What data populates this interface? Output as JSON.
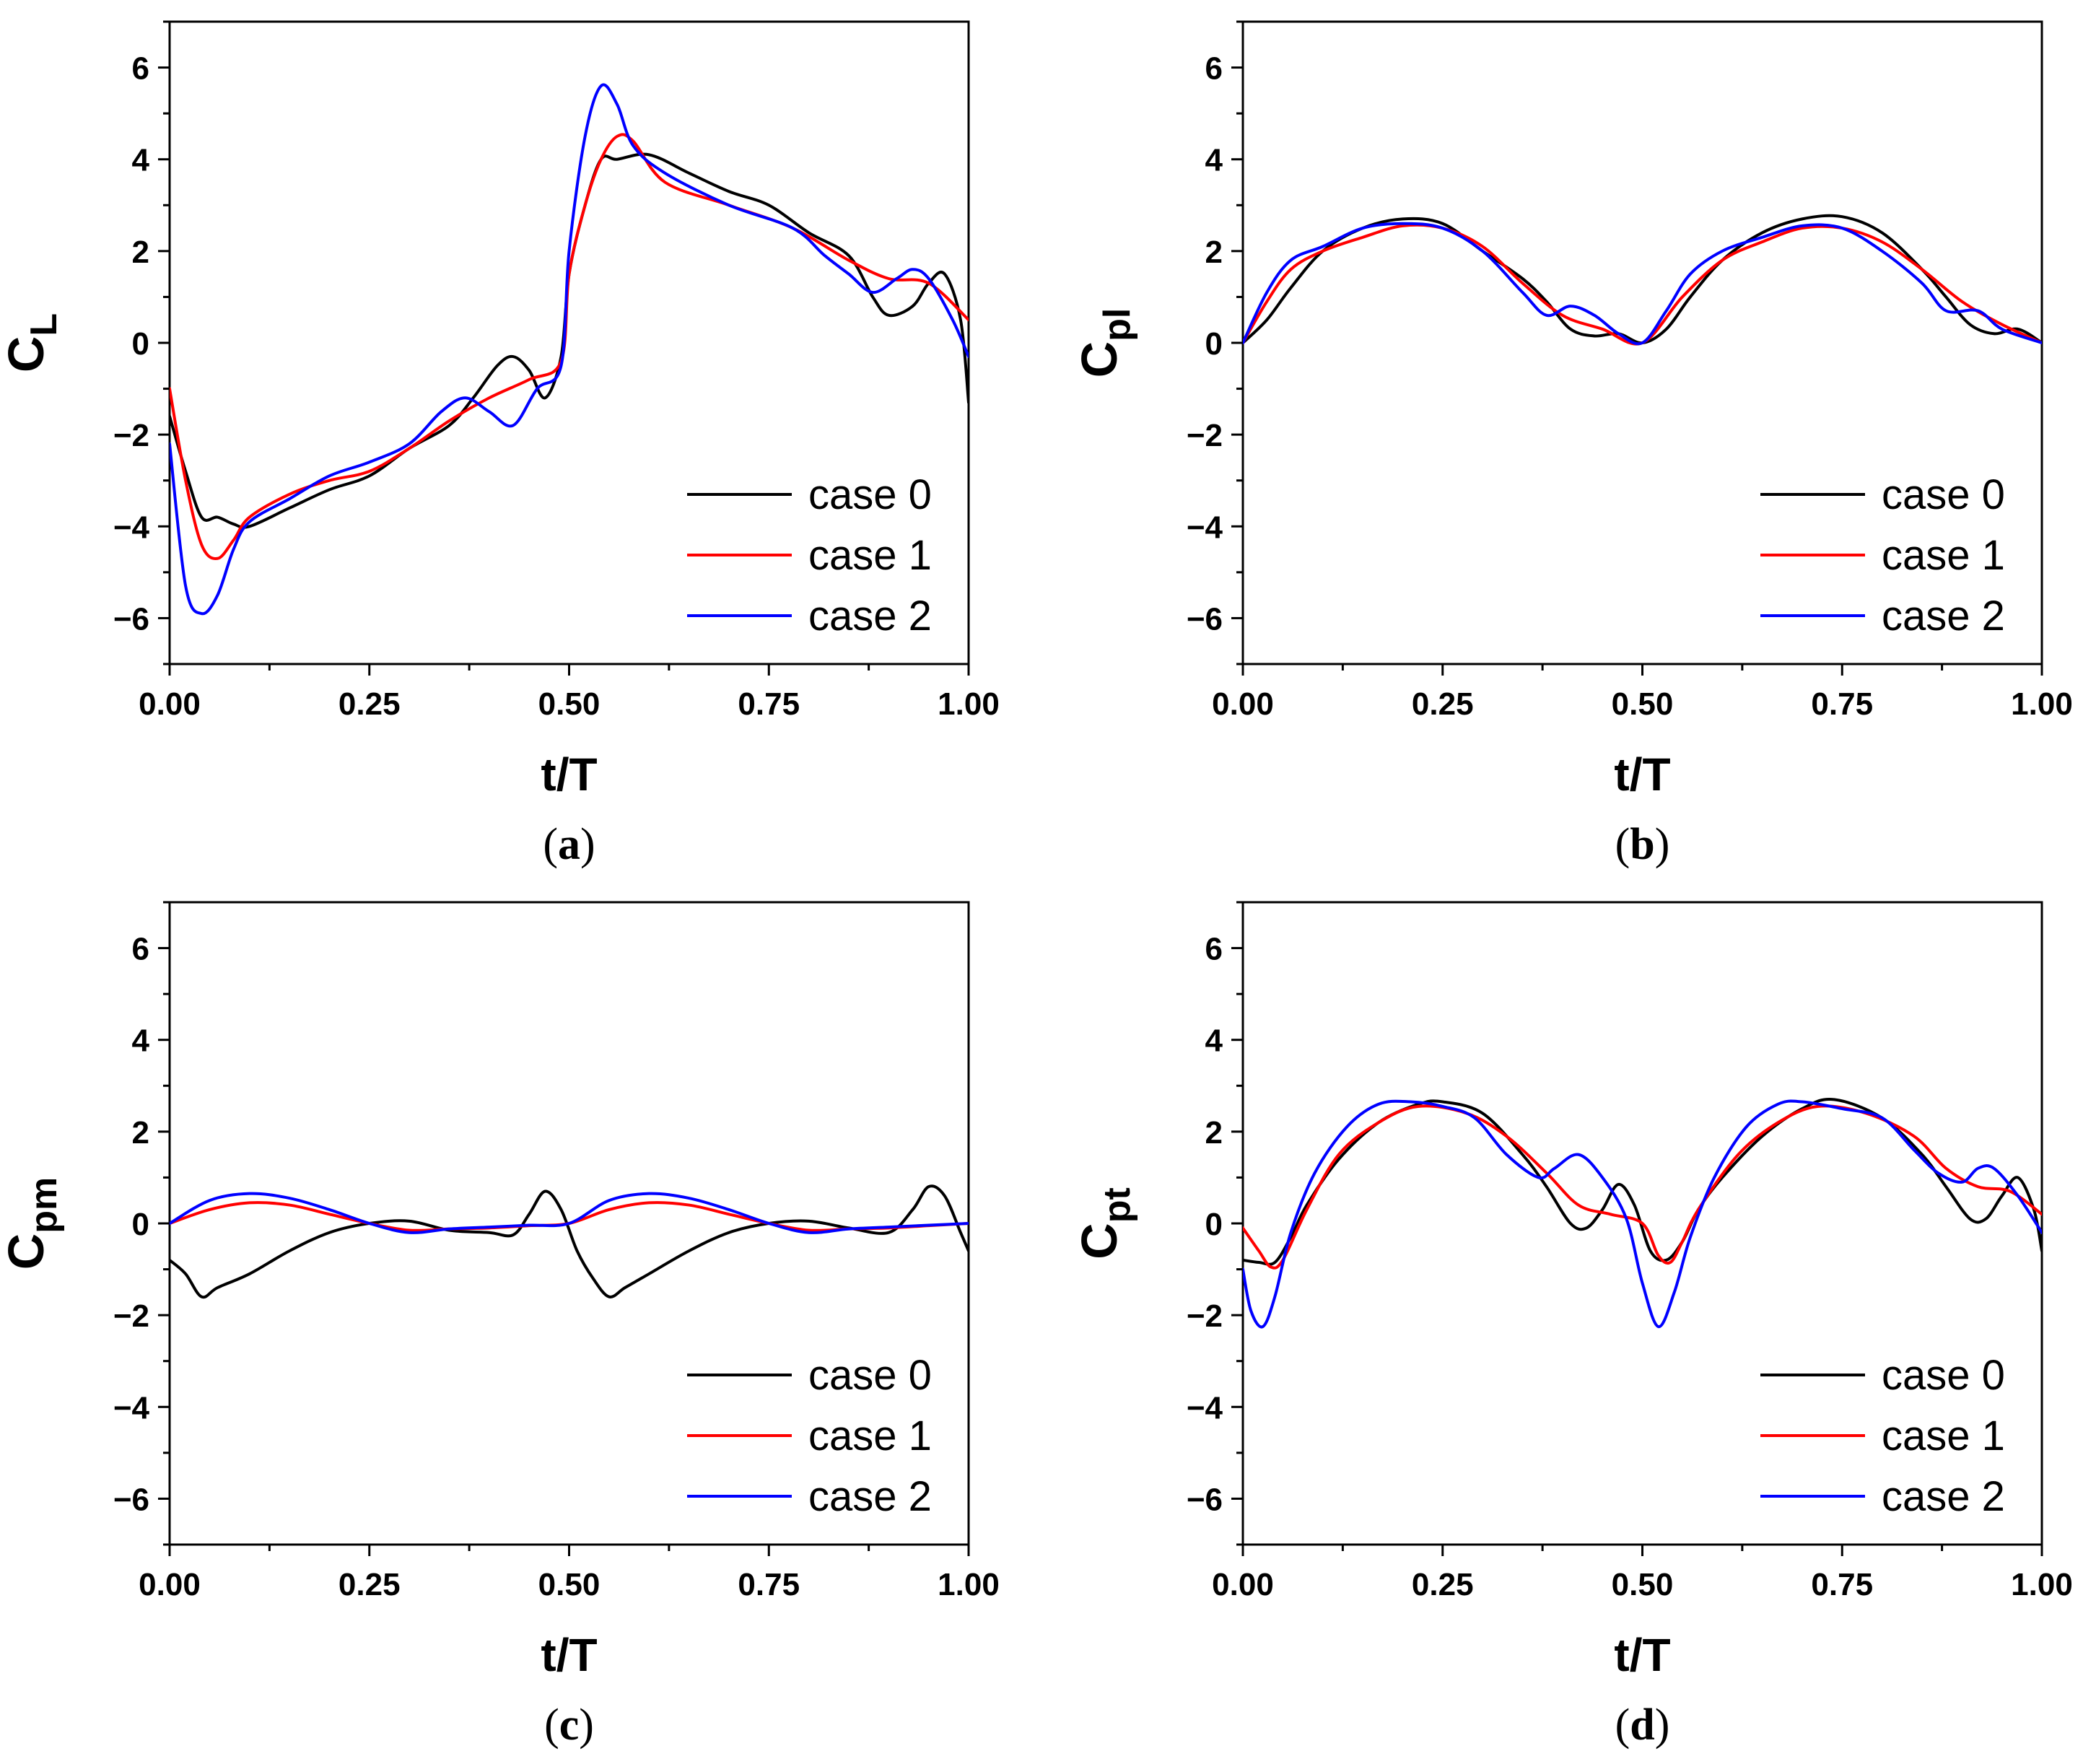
{
  "chart_data": [
    {
      "type": "line",
      "panel": "a",
      "caption": "(a)",
      "ylabel_main": "C",
      "ylabel_sub": "L",
      "xlabel": "t/T",
      "xlim": [
        0,
        1
      ],
      "ylim": [
        -7,
        7
      ],
      "xticks": [
        "0.00",
        "0.25",
        "0.50",
        "0.75",
        "1.00"
      ],
      "yticks": [
        "6",
        "4",
        "2",
        "0",
        "−2",
        "−4",
        "−6"
      ],
      "legend_position": "bottom-right",
      "series": [
        {
          "name": "case 0",
          "color": "#000000",
          "x": [
            0,
            0.02,
            0.04,
            0.06,
            0.08,
            0.1,
            0.15,
            0.2,
            0.25,
            0.3,
            0.35,
            0.38,
            0.41,
            0.43,
            0.45,
            0.47,
            0.49,
            0.5,
            0.52,
            0.54,
            0.56,
            0.6,
            0.65,
            0.7,
            0.75,
            0.8,
            0.85,
            0.88,
            0.9,
            0.93,
            0.95,
            0.97,
            0.99,
            1.0
          ],
          "y": [
            -1.6,
            -2.8,
            -3.8,
            -3.8,
            -3.95,
            -4.0,
            -3.6,
            -3.2,
            -2.9,
            -2.3,
            -1.8,
            -1.2,
            -0.5,
            -0.3,
            -0.6,
            -1.2,
            -0.3,
            1.5,
            3.0,
            4.0,
            4.0,
            4.1,
            3.7,
            3.3,
            3.0,
            2.4,
            1.9,
            1.0,
            0.6,
            0.8,
            1.3,
            1.5,
            0.5,
            -1.3
          ]
        },
        {
          "name": "case 1",
          "color": "#ff0000",
          "x": [
            0,
            0.02,
            0.04,
            0.06,
            0.08,
            0.1,
            0.15,
            0.2,
            0.25,
            0.3,
            0.35,
            0.4,
            0.45,
            0.49,
            0.5,
            0.52,
            0.54,
            0.56,
            0.58,
            0.62,
            0.7,
            0.78,
            0.85,
            0.9,
            0.95,
            1.0
          ],
          "y": [
            -1.0,
            -3.0,
            -4.4,
            -4.7,
            -4.3,
            -3.8,
            -3.3,
            -3.0,
            -2.8,
            -2.3,
            -1.7,
            -1.2,
            -0.8,
            -0.4,
            1.5,
            3.0,
            4.0,
            4.5,
            4.4,
            3.5,
            3.0,
            2.5,
            1.8,
            1.4,
            1.3,
            0.5
          ]
        },
        {
          "name": "case 2",
          "color": "#0000ff",
          "x": [
            0,
            0.02,
            0.04,
            0.06,
            0.08,
            0.1,
            0.15,
            0.2,
            0.25,
            0.3,
            0.34,
            0.37,
            0.4,
            0.43,
            0.46,
            0.49,
            0.5,
            0.52,
            0.54,
            0.56,
            0.58,
            0.62,
            0.7,
            0.78,
            0.82,
            0.85,
            0.88,
            0.91,
            0.93,
            0.95,
            0.98,
            1.0
          ],
          "y": [
            -2.2,
            -5.3,
            -5.9,
            -5.5,
            -4.5,
            -3.9,
            -3.4,
            -2.9,
            -2.6,
            -2.2,
            -1.5,
            -1.2,
            -1.5,
            -1.8,
            -1.0,
            -0.5,
            2.0,
            4.5,
            5.6,
            5.2,
            4.3,
            3.7,
            3.0,
            2.5,
            1.9,
            1.5,
            1.1,
            1.4,
            1.6,
            1.4,
            0.5,
            -0.3
          ]
        }
      ]
    },
    {
      "type": "line",
      "panel": "b",
      "caption": "(b)",
      "ylabel_main": "C",
      "ylabel_sub": "pl",
      "xlabel": "t/T",
      "xlim": [
        0,
        1
      ],
      "ylim": [
        -7,
        7
      ],
      "xticks": [
        "0.00",
        "0.25",
        "0.50",
        "0.75",
        "1.00"
      ],
      "yticks": [
        "6",
        "4",
        "2",
        "0",
        "−2",
        "−4",
        "−6"
      ],
      "legend_position": "bottom-right",
      "series": [
        {
          "name": "case 0",
          "color": "#000000",
          "x": [
            0,
            0.03,
            0.06,
            0.1,
            0.15,
            0.2,
            0.25,
            0.3,
            0.35,
            0.38,
            0.41,
            0.44,
            0.47,
            0.5,
            0.53,
            0.56,
            0.6,
            0.65,
            0.7,
            0.75,
            0.8,
            0.85,
            0.88,
            0.91,
            0.94,
            0.97,
            1.0
          ],
          "y": [
            0,
            0.5,
            1.2,
            2.0,
            2.5,
            2.7,
            2.6,
            2.0,
            1.4,
            0.9,
            0.3,
            0.15,
            0.2,
            0,
            0.3,
            1.0,
            1.8,
            2.4,
            2.7,
            2.75,
            2.4,
            1.6,
            1.0,
            0.4,
            0.2,
            0.3,
            0
          ]
        },
        {
          "name": "case 1",
          "color": "#ff0000",
          "x": [
            0,
            0.03,
            0.06,
            0.1,
            0.15,
            0.2,
            0.25,
            0.3,
            0.35,
            0.4,
            0.45,
            0.5,
            0.55,
            0.6,
            0.65,
            0.7,
            0.75,
            0.8,
            0.85,
            0.9,
            0.95,
            1.0
          ],
          "y": [
            0,
            0.9,
            1.6,
            2.0,
            2.3,
            2.55,
            2.5,
            2.1,
            1.3,
            0.6,
            0.3,
            0,
            1.0,
            1.8,
            2.2,
            2.5,
            2.5,
            2.2,
            1.6,
            0.9,
            0.4,
            0
          ]
        },
        {
          "name": "case 2",
          "color": "#0000ff",
          "x": [
            0,
            0.03,
            0.06,
            0.1,
            0.15,
            0.2,
            0.25,
            0.3,
            0.35,
            0.38,
            0.41,
            0.44,
            0.47,
            0.5,
            0.53,
            0.56,
            0.6,
            0.65,
            0.7,
            0.75,
            0.8,
            0.85,
            0.88,
            0.92,
            0.95,
            1.0
          ],
          "y": [
            0,
            1.1,
            1.8,
            2.1,
            2.5,
            2.6,
            2.5,
            2.0,
            1.1,
            0.6,
            0.8,
            0.6,
            0.2,
            0,
            0.7,
            1.5,
            2.0,
            2.3,
            2.55,
            2.5,
            2.0,
            1.3,
            0.7,
            0.7,
            0.3,
            0
          ]
        }
      ]
    },
    {
      "type": "line",
      "panel": "c",
      "caption": "(c)",
      "ylabel_main": "C",
      "ylabel_sub": "pm",
      "xlabel": "t/T",
      "xlim": [
        0,
        1
      ],
      "ylim": [
        -7,
        7
      ],
      "xticks": [
        "0.00",
        "0.25",
        "0.50",
        "0.75",
        "1.00"
      ],
      "yticks": [
        "6",
        "4",
        "2",
        "0",
        "−2",
        "−4",
        "−6"
      ],
      "legend_position": "bottom-right",
      "series": [
        {
          "name": "case 0",
          "color": "#000000",
          "x": [
            0,
            0.02,
            0.04,
            0.06,
            0.1,
            0.15,
            0.2,
            0.25,
            0.3,
            0.35,
            0.4,
            0.43,
            0.45,
            0.47,
            0.49,
            0.51,
            0.53,
            0.55,
            0.57,
            0.6,
            0.65,
            0.7,
            0.75,
            0.8,
            0.85,
            0.9,
            0.93,
            0.95,
            0.97,
            0.99,
            1.0
          ],
          "y": [
            -0.8,
            -1.1,
            -1.6,
            -1.4,
            -1.1,
            -0.6,
            -0.2,
            0,
            0.05,
            -0.15,
            -0.2,
            -0.25,
            0.2,
            0.7,
            0.3,
            -0.6,
            -1.2,
            -1.6,
            -1.4,
            -1.1,
            -0.6,
            -0.2,
            0,
            0.05,
            -0.1,
            -0.2,
            0.3,
            0.8,
            0.6,
            -0.2,
            -0.6
          ]
        },
        {
          "name": "case 1",
          "color": "#ff0000",
          "x": [
            0,
            0.05,
            0.1,
            0.15,
            0.2,
            0.25,
            0.3,
            0.35,
            0.4,
            0.45,
            0.5,
            0.55,
            0.6,
            0.65,
            0.7,
            0.75,
            0.8,
            0.85,
            0.9,
            0.95,
            1.0
          ],
          "y": [
            0,
            0.3,
            0.45,
            0.4,
            0.2,
            0,
            -0.15,
            -0.12,
            -0.1,
            -0.05,
            0,
            0.3,
            0.45,
            0.4,
            0.2,
            0,
            -0.15,
            -0.12,
            -0.1,
            -0.05,
            0
          ]
        },
        {
          "name": "case 2",
          "color": "#0000ff",
          "x": [
            0,
            0.05,
            0.1,
            0.15,
            0.2,
            0.25,
            0.3,
            0.35,
            0.4,
            0.45,
            0.5,
            0.55,
            0.6,
            0.65,
            0.7,
            0.75,
            0.8,
            0.85,
            0.9,
            0.95,
            1.0
          ],
          "y": [
            0,
            0.5,
            0.65,
            0.55,
            0.3,
            0,
            -0.2,
            -0.12,
            -0.08,
            -0.04,
            0,
            0.5,
            0.65,
            0.55,
            0.3,
            0,
            -0.2,
            -0.12,
            -0.08,
            -0.04,
            0
          ]
        }
      ]
    },
    {
      "type": "line",
      "panel": "d",
      "caption": "(d)",
      "ylabel_main": "C",
      "ylabel_sub": "pt",
      "xlabel": "t/T",
      "xlim": [
        0,
        1
      ],
      "ylim": [
        -7,
        7
      ],
      "xticks": [
        "0.00",
        "0.25",
        "0.50",
        "0.75",
        "1.00"
      ],
      "yticks": [
        "6",
        "4",
        "2",
        "0",
        "−2",
        "−4",
        "−6"
      ],
      "legend_position": "bottom-right",
      "series": [
        {
          "name": "case 0",
          "color": "#000000",
          "x": [
            0,
            0.02,
            0.04,
            0.06,
            0.08,
            0.12,
            0.17,
            0.22,
            0.25,
            0.3,
            0.35,
            0.38,
            0.41,
            0.43,
            0.45,
            0.47,
            0.49,
            0.51,
            0.53,
            0.55,
            0.57,
            0.6,
            0.65,
            0.7,
            0.74,
            0.8,
            0.85,
            0.88,
            0.91,
            0.93,
            0.95,
            0.97,
            0.99,
            1.0
          ],
          "y": [
            -0.8,
            -0.85,
            -0.85,
            -0.3,
            0.4,
            1.4,
            2.2,
            2.6,
            2.65,
            2.4,
            1.5,
            0.8,
            0.0,
            -0.1,
            0.3,
            0.85,
            0.4,
            -0.6,
            -0.8,
            -0.4,
            0.3,
            1.0,
            1.9,
            2.5,
            2.7,
            2.3,
            1.5,
            0.8,
            0.1,
            0.1,
            0.6,
            1.0,
            0.3,
            -0.6
          ]
        },
        {
          "name": "case 1",
          "color": "#ff0000",
          "x": [
            0,
            0.02,
            0.035,
            0.05,
            0.08,
            0.12,
            0.17,
            0.22,
            0.28,
            0.33,
            0.38,
            0.42,
            0.46,
            0.5,
            0.52,
            0.535,
            0.55,
            0.57,
            0.62,
            0.67,
            0.72,
            0.78,
            0.84,
            0.88,
            0.92,
            0.96,
            1.0
          ],
          "y": [
            -0.1,
            -0.6,
            -0.95,
            -0.8,
            0.3,
            1.5,
            2.2,
            2.55,
            2.4,
            1.9,
            1.1,
            0.4,
            0.2,
            0.0,
            -0.7,
            -0.85,
            -0.4,
            0.3,
            1.5,
            2.2,
            2.55,
            2.4,
            1.9,
            1.2,
            0.8,
            0.7,
            0.2
          ]
        },
        {
          "name": "case 2",
          "color": "#0000ff",
          "x": [
            0,
            0.01,
            0.025,
            0.04,
            0.06,
            0.09,
            0.13,
            0.17,
            0.21,
            0.25,
            0.29,
            0.33,
            0.37,
            0.39,
            0.42,
            0.45,
            0.48,
            0.5,
            0.52,
            0.54,
            0.56,
            0.59,
            0.63,
            0.67,
            0.7,
            0.75,
            0.8,
            0.84,
            0.87,
            0.9,
            0.92,
            0.94,
            0.97,
            1.0
          ],
          "y": [
            -1.0,
            -1.9,
            -2.25,
            -1.6,
            -0.2,
            1.1,
            2.1,
            2.6,
            2.65,
            2.55,
            2.3,
            1.5,
            1.0,
            1.2,
            1.5,
            1.0,
            0.1,
            -1.3,
            -2.25,
            -1.5,
            -0.3,
            1.0,
            2.1,
            2.6,
            2.65,
            2.5,
            2.3,
            1.6,
            1.1,
            0.9,
            1.2,
            1.2,
            0.6,
            -0.2
          ]
        }
      ]
    }
  ]
}
